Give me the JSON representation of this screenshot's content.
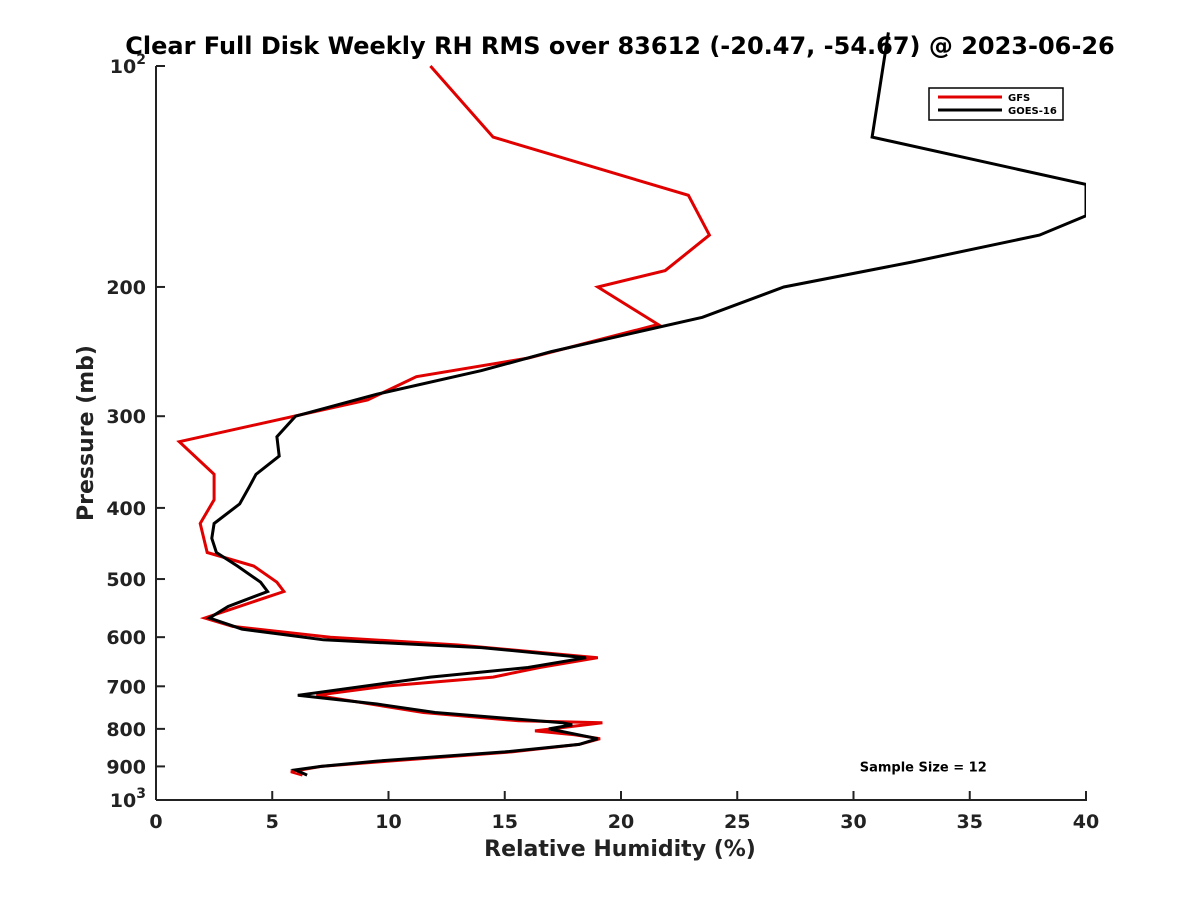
{
  "chart_data": {
    "type": "line",
    "title": "Clear Full Disk Weekly RH RMS over 83612 (-20.47, -54.67) @ 2023-06-26",
    "xlabel": "Relative Humidity (%)",
    "ylabel": "Pressure (mb)",
    "xlim": [
      0,
      40
    ],
    "ylim": [
      100,
      1000
    ],
    "yscale": "log",
    "y_reversed": true,
    "grid": false,
    "legend": "top-right",
    "x_ticks": [
      0,
      5,
      10,
      15,
      20,
      25,
      30,
      35,
      40
    ],
    "y_ticks": [
      {
        "value": 100,
        "label": "10",
        "sup": "2"
      },
      {
        "value": 200,
        "label": "200",
        "sup": ""
      },
      {
        "value": 300,
        "label": "300",
        "sup": ""
      },
      {
        "value": 400,
        "label": "400",
        "sup": ""
      },
      {
        "value": 500,
        "label": "500",
        "sup": ""
      },
      {
        "value": 600,
        "label": "600",
        "sup": ""
      },
      {
        "value": 700,
        "label": "700",
        "sup": ""
      },
      {
        "value": 800,
        "label": "800",
        "sup": ""
      },
      {
        "value": 900,
        "label": "900",
        "sup": ""
      },
      {
        "value": 1000,
        "label": "10",
        "sup": "3"
      }
    ],
    "series": [
      {
        "name": "GFS",
        "color": "#e00000",
        "points": [
          [
            11.8,
            100
          ],
          [
            14.5,
            125
          ],
          [
            22.9,
            150
          ],
          [
            23.8,
            170
          ],
          [
            21.9,
            190
          ],
          [
            19.0,
            200
          ],
          [
            21.6,
            225
          ],
          [
            16.0,
            250
          ],
          [
            11.2,
            265
          ],
          [
            9.1,
            285
          ],
          [
            1.0,
            325
          ],
          [
            2.5,
            360
          ],
          [
            2.5,
            390
          ],
          [
            1.9,
            420
          ],
          [
            2.2,
            460
          ],
          [
            4.2,
            480
          ],
          [
            5.2,
            505
          ],
          [
            5.5,
            520
          ],
          [
            3.2,
            550
          ],
          [
            2.1,
            565
          ],
          [
            3.3,
            580
          ],
          [
            7.5,
            600
          ],
          [
            13.0,
            615
          ],
          [
            19.0,
            640
          ],
          [
            16.5,
            660
          ],
          [
            14.5,
            680
          ],
          [
            9.8,
            700
          ],
          [
            6.9,
            720
          ],
          [
            11.5,
            760
          ],
          [
            15.6,
            780
          ],
          [
            19.2,
            785
          ],
          [
            16.3,
            805
          ],
          [
            18.0,
            815
          ],
          [
            19.1,
            825
          ],
          [
            18.2,
            840
          ],
          [
            15.3,
            860
          ],
          [
            10.0,
            885
          ],
          [
            7.1,
            900
          ],
          [
            5.8,
            915
          ],
          [
            6.3,
            925
          ]
        ]
      },
      {
        "name": "GOES-16",
        "color": "#000000",
        "points": [
          [
            31.5,
            90
          ],
          [
            30.8,
            125
          ],
          [
            40.0,
            145
          ],
          [
            40.0,
            160
          ],
          [
            38.0,
            170
          ],
          [
            32.5,
            185
          ],
          [
            27.0,
            200
          ],
          [
            23.5,
            220
          ],
          [
            17.0,
            245
          ],
          [
            14.0,
            260
          ],
          [
            9.5,
            280
          ],
          [
            6.0,
            300
          ],
          [
            5.2,
            320
          ],
          [
            5.3,
            340
          ],
          [
            4.3,
            360
          ],
          [
            4.0,
            375
          ],
          [
            3.6,
            395
          ],
          [
            2.5,
            420
          ],
          [
            2.4,
            440
          ],
          [
            2.6,
            460
          ],
          [
            3.5,
            480
          ],
          [
            4.5,
            505
          ],
          [
            4.8,
            520
          ],
          [
            3.1,
            545
          ],
          [
            2.3,
            565
          ],
          [
            3.7,
            585
          ],
          [
            7.2,
            605
          ],
          [
            14.0,
            620
          ],
          [
            18.5,
            640
          ],
          [
            16.0,
            660
          ],
          [
            11.8,
            680
          ],
          [
            6.1,
            720
          ],
          [
            9.5,
            740
          ],
          [
            12.0,
            760
          ],
          [
            17.5,
            785
          ],
          [
            17.9,
            790
          ],
          [
            16.9,
            800
          ],
          [
            19.0,
            825
          ],
          [
            18.2,
            840
          ],
          [
            15.0,
            860
          ],
          [
            9.5,
            885
          ],
          [
            7.1,
            900
          ],
          [
            6.0,
            910
          ],
          [
            6.5,
            925
          ]
        ]
      }
    ],
    "annotations": [
      {
        "text": "Sample Size = 12",
        "x": 33,
        "y": 900
      }
    ]
  }
}
